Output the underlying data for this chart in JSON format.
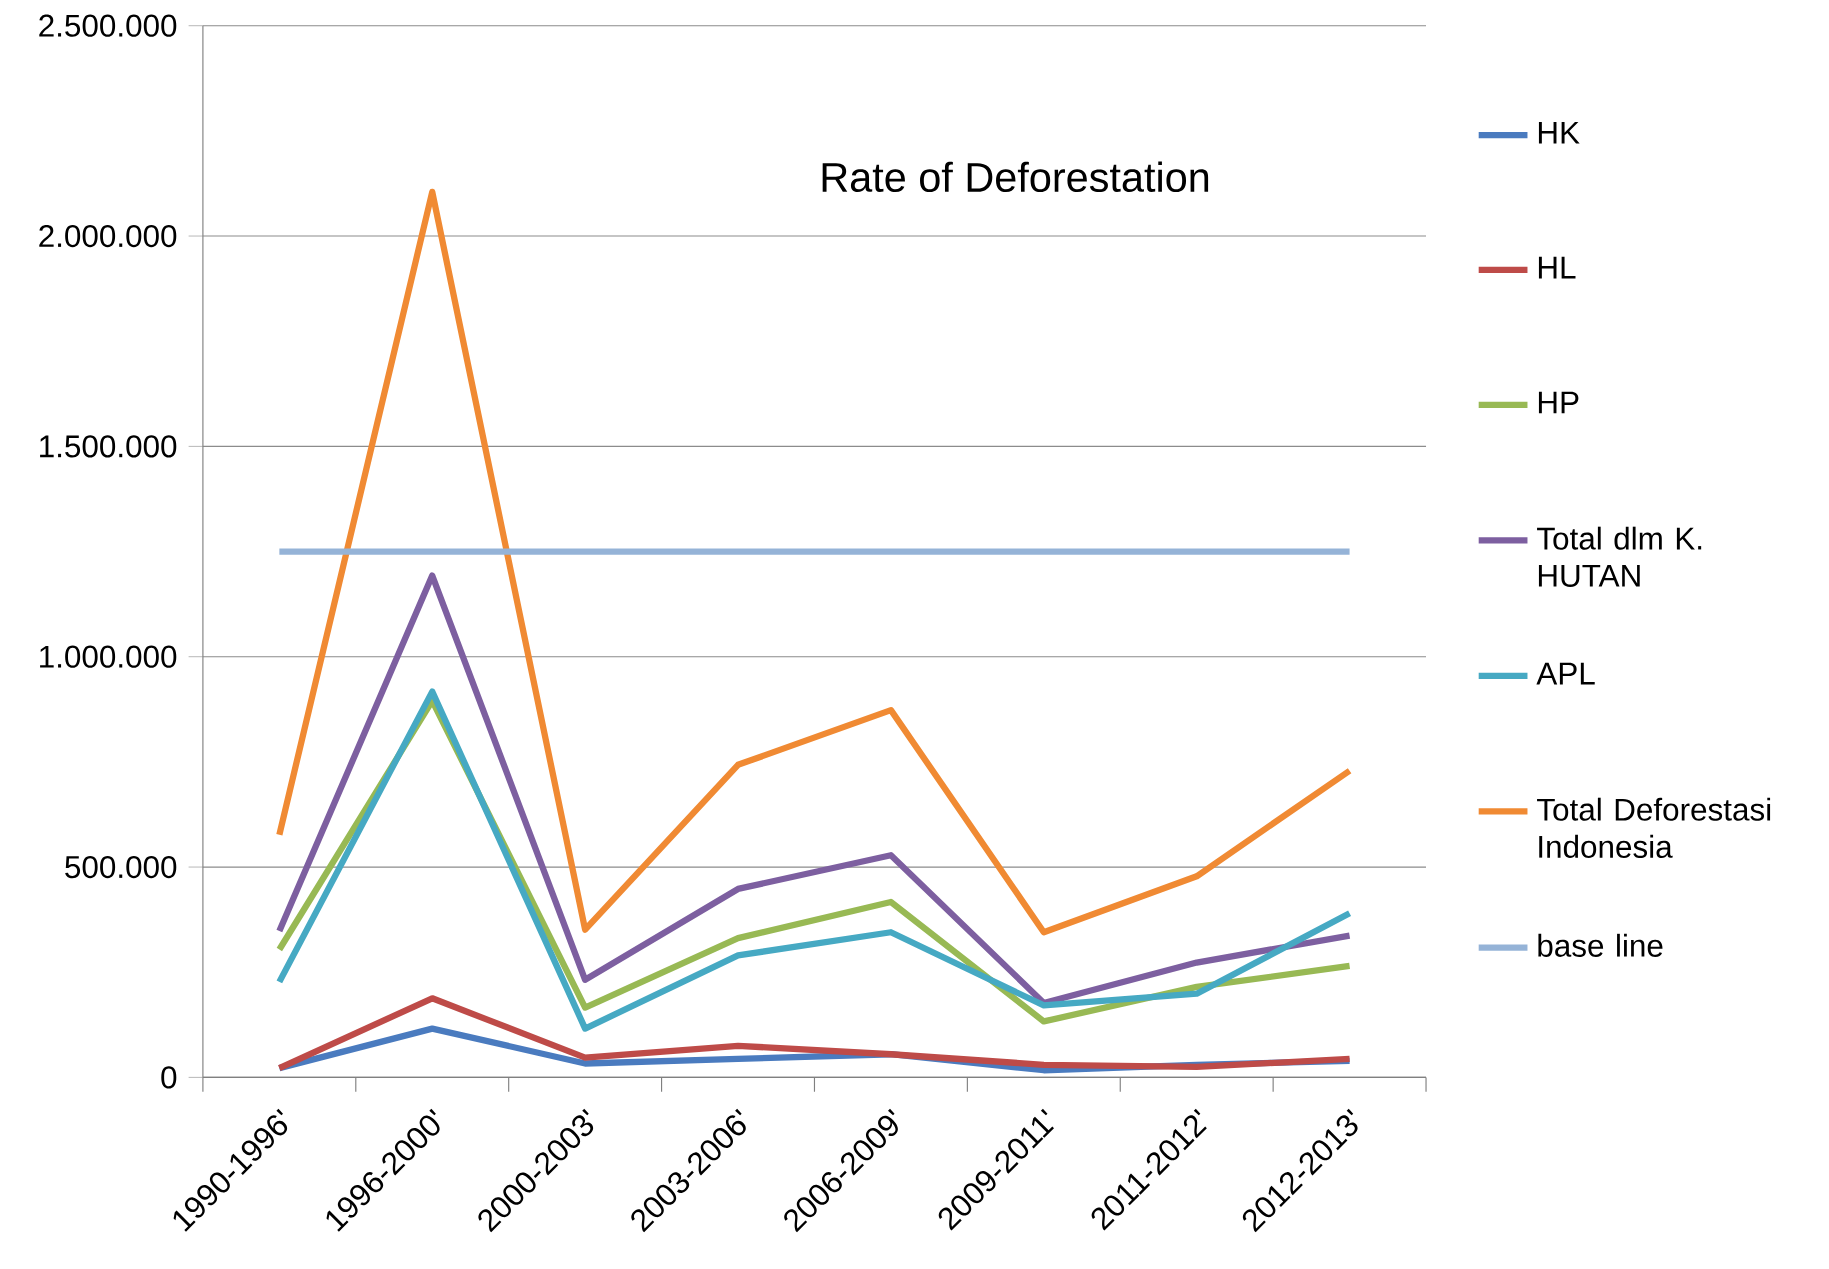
{
  "chart_data": {
    "type": "line",
    "title": "Rate of Deforestation",
    "categories": [
      "1990-1996'",
      "1996-2000'",
      "2000-2003'",
      "2003-2006'",
      "2006-2009'",
      "2009-2011'",
      "2011-2012'",
      "2012-2013'"
    ],
    "series": [
      {
        "name": "HK",
        "color": "#4a7bbf",
        "values": [
          22000,
          116000,
          33000,
          44000,
          55000,
          17000,
          30000,
          39000
        ]
      },
      {
        "name": "HL",
        "color": "#be4b48",
        "values": [
          22000,
          188000,
          47000,
          75000,
          55000,
          30000,
          25000,
          44000
        ]
      },
      {
        "name": "HP",
        "color": "#98b954",
        "values": [
          304000,
          895000,
          166000,
          331000,
          417000,
          133000,
          215000,
          265000
        ]
      },
      {
        "name": "Total dlm K. HUTAN",
        "color": "#7d5fa0",
        "values": [
          348000,
          1193000,
          232000,
          448000,
          528000,
          177000,
          273000,
          337000
        ]
      },
      {
        "name": "APL",
        "color": "#46a9c3",
        "values": [
          227000,
          917000,
          116000,
          290000,
          345000,
          171000,
          199000,
          390000
        ]
      },
      {
        "name": "Total Deforestasi Indonesia",
        "color": "#f08a33",
        "values": [
          577000,
          2105000,
          351000,
          743000,
          873000,
          345000,
          478000,
          729000
        ]
      },
      {
        "name": "base line",
        "color": "#95b3d7",
        "values": [
          1250000,
          1250000,
          1250000,
          1250000,
          1250000,
          1250000,
          1250000,
          1250000
        ]
      }
    ],
    "ylim": [
      0,
      2500000
    ],
    "yticks": [
      0,
      {
        "value": 500000,
        "label": "500.000"
      },
      {
        "value": 1000000,
        "label": "1.000.000"
      },
      {
        "value": 1500000,
        "label": "1.500.000"
      },
      {
        "value": 2000000,
        "label": "2.000.000"
      },
      {
        "value": 2500000,
        "label": "2.500.000"
      }
    ],
    "grid": "y",
    "legend": "right",
    "marker": "none"
  }
}
